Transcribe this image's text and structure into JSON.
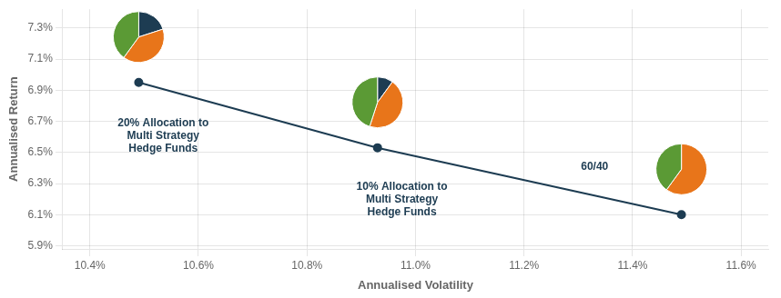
{
  "chart_data": {
    "type": "line",
    "x": [
      10.49,
      10.93,
      11.49
    ],
    "values": [
      6.95,
      6.53,
      6.1
    ],
    "color": "#1d3c52",
    "marker": "circle",
    "xlabel": "Annualised Volatility",
    "ylabel": "Annualised Return",
    "xlim": [
      10.35,
      11.65
    ],
    "ylim": [
      5.88,
      7.42
    ],
    "xticks": [
      {
        "value": 10.4,
        "label": "10.4%"
      },
      {
        "value": 10.6,
        "label": "10.6%"
      },
      {
        "value": 10.8,
        "label": "10.8%"
      },
      {
        "value": 11.0,
        "label": "11.0%"
      },
      {
        "value": 11.2,
        "label": "11.2%"
      },
      {
        "value": 11.4,
        "label": "11.4%"
      },
      {
        "value": 11.6,
        "label": "11.6%"
      }
    ],
    "yticks": [
      {
        "value": 5.9,
        "label": "5.9%"
      },
      {
        "value": 6.1,
        "label": "6.1%"
      },
      {
        "value": 6.3,
        "label": "6.3%"
      },
      {
        "value": 6.5,
        "label": "6.5%"
      },
      {
        "value": 6.7,
        "label": "6.7%"
      },
      {
        "value": 6.9,
        "label": "6.9%"
      },
      {
        "value": 7.1,
        "label": "7.1%"
      },
      {
        "value": 7.3,
        "label": "7.3%"
      }
    ],
    "grid": true,
    "annotations": [
      {
        "text": "20% Allocation to\nMulti Strategy\nHedge Funds",
        "x": 10.535,
        "y": 6.72
      },
      {
        "text": "10% Allocation to\nMulti Strategy\nHedge Funds",
        "x": 10.975,
        "y": 6.315
      },
      {
        "text": "60/40",
        "x": 11.33,
        "y": 6.44
      }
    ],
    "pie_slices": [
      [
        20,
        40,
        40
      ],
      [
        10,
        45,
        45
      ],
      [
        0,
        60,
        40
      ]
    ],
    "pie_colors": [
      "#1d3c52",
      "#e8751a",
      "#5b9a35"
    ]
  }
}
